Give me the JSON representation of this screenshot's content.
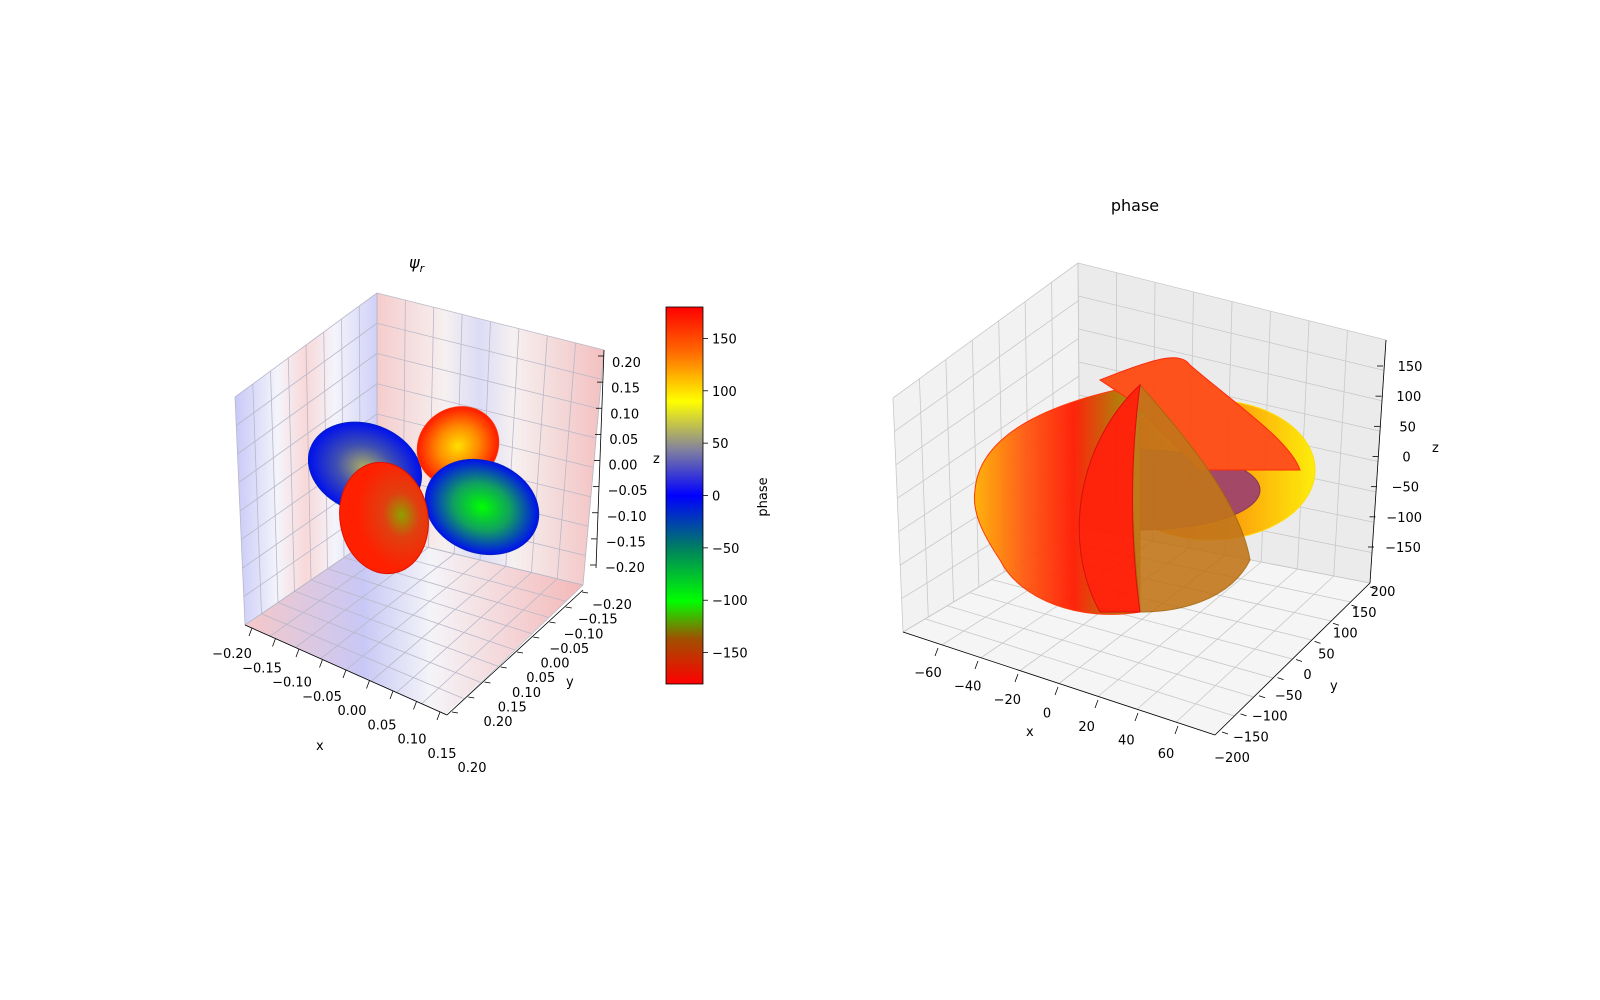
{
  "chart_data": [
    {
      "type": "surface",
      "title": "ψ_r",
      "title_main": "ψ",
      "title_sub": "r",
      "xlabel": "x",
      "ylabel": "y",
      "zlabel": "z",
      "xticks": [
        "−0.20",
        "−0.15",
        "−0.10",
        "−0.05",
        "0.00",
        "0.05",
        "0.10",
        "0.15",
        "0.20"
      ],
      "yticks": [
        "−0.20",
        "−0.15",
        "−0.10",
        "−0.05",
        "0.00",
        "0.05",
        "0.10",
        "0.15",
        "0.20"
      ],
      "zticks": [
        "0.20",
        "0.15",
        "0.10",
        "0.05",
        "0.00",
        "−0.05",
        "−0.10",
        "−0.15",
        "−0.20"
      ],
      "xlim": [
        -0.2,
        0.2
      ],
      "ylim": [
        -0.2,
        0.2
      ],
      "zlim": [
        -0.2,
        0.2
      ],
      "projections": "contour planes on walls and floor (red positive, blue negative)",
      "colorbar": {
        "label": "phase",
        "ticks": [
          "150",
          "100",
          "50",
          "0",
          "−50",
          "−100",
          "−150"
        ],
        "range": [
          -180,
          180
        ],
        "colors": [
          "#ff0000",
          "#ff6a00",
          "#ffff00",
          "#808080",
          "#0000ff",
          "#008080",
          "#00ff00",
          "#808000",
          "#ff0000"
        ]
      }
    },
    {
      "type": "surface",
      "title": "phase",
      "xlabel": "x",
      "ylabel": "y",
      "zlabel": "z",
      "xticks": [
        "−60",
        "−40",
        "−20",
        "0",
        "20",
        "40",
        "60"
      ],
      "yticks": [
        "−200",
        "−150",
        "−100",
        "−50",
        "0",
        "50",
        "100",
        "150",
        "200"
      ],
      "zticks": [
        "150",
        "100",
        "50",
        "0",
        "−50",
        "−100",
        "−150"
      ],
      "xlim": [
        -70,
        70
      ],
      "ylim": [
        -200,
        200
      ],
      "zlim": [
        -180,
        180
      ],
      "grid": true
    }
  ]
}
